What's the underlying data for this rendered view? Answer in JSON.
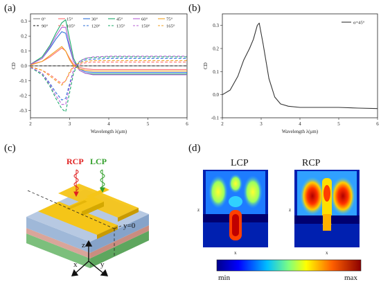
{
  "panel_labels": {
    "a": "(a)",
    "b": "(b)",
    "c": "(c)",
    "d": "(d)"
  },
  "chart_data": [
    {
      "type": "line",
      "xlabel": "Wavelength λ(μm)",
      "ylabel": "CD",
      "xlim": [
        2,
        6
      ],
      "ylim": [
        -0.35,
        0.35
      ],
      "xticks": [
        "2",
        "3",
        "4",
        "5",
        "6"
      ],
      "yticks": [
        "0.3",
        "0.2",
        "0.1",
        "0.0",
        "-0.1",
        "-0.2",
        "-0.3"
      ],
      "legend_position": "top",
      "x": [
        2.0,
        2.3,
        2.5,
        2.65,
        2.8,
        2.9,
        3.0,
        3.1,
        3.25,
        3.4,
        3.6,
        4.0,
        4.5,
        5.0,
        5.5,
        6.0
      ],
      "series": [
        {
          "name": "0°",
          "color": "#808080",
          "dash": false,
          "values": [
            0,
            0,
            0,
            0,
            0,
            0,
            0,
            0,
            0,
            0,
            0,
            0,
            0,
            0,
            0,
            0
          ]
        },
        {
          "name": "15°",
          "color": "#ff6b6b",
          "dash": false,
          "values": [
            0.01,
            0.03,
            0.06,
            0.09,
            0.12,
            0.1,
            0.05,
            0.01,
            -0.01,
            -0.02,
            -0.025,
            -0.025,
            -0.025,
            -0.025,
            -0.025,
            -0.025
          ]
        },
        {
          "name": "30°",
          "color": "#2e6fd9",
          "dash": false,
          "values": [
            0.01,
            0.05,
            0.12,
            0.18,
            0.23,
            0.22,
            0.12,
            0.03,
            -0.02,
            -0.04,
            -0.045,
            -0.045,
            -0.045,
            -0.045,
            -0.045,
            -0.045
          ]
        },
        {
          "name": "45°",
          "color": "#1aaa6a",
          "dash": false,
          "values": [
            0.01,
            0.06,
            0.14,
            0.22,
            0.29,
            0.31,
            0.18,
            0.05,
            -0.03,
            -0.05,
            -0.055,
            -0.055,
            -0.055,
            -0.055,
            -0.055,
            -0.055
          ]
        },
        {
          "name": "60°",
          "color": "#b45fd6",
          "dash": false,
          "values": [
            0.01,
            0.05,
            0.13,
            0.2,
            0.26,
            0.26,
            0.14,
            0.03,
            -0.03,
            -0.05,
            -0.06,
            -0.06,
            -0.06,
            -0.06,
            -0.06,
            -0.06
          ]
        },
        {
          "name": "75°",
          "color": "#f0a020",
          "dash": false,
          "values": [
            0.005,
            0.03,
            0.07,
            0.1,
            0.13,
            0.1,
            0.04,
            0.0,
            -0.02,
            -0.03,
            -0.035,
            -0.035,
            -0.035,
            -0.035,
            -0.035,
            -0.035
          ]
        },
        {
          "name": "90°",
          "color": "#111111",
          "dash": true,
          "values": [
            0,
            0,
            0,
            0,
            0,
            0,
            0,
            0,
            0,
            0,
            0,
            0,
            0,
            0,
            0,
            0
          ]
        },
        {
          "name": "105°",
          "color": "#ff6b6b",
          "dash": true,
          "values": [
            -0.01,
            -0.03,
            -0.06,
            -0.09,
            -0.12,
            -0.1,
            -0.05,
            -0.01,
            0.01,
            0.02,
            0.025,
            0.025,
            0.025,
            0.025,
            0.025,
            0.025
          ]
        },
        {
          "name": "120°",
          "color": "#2e6fd9",
          "dash": true,
          "values": [
            -0.01,
            -0.05,
            -0.12,
            -0.18,
            -0.23,
            -0.22,
            -0.12,
            -0.03,
            0.02,
            0.04,
            0.045,
            0.05,
            0.05,
            0.05,
            0.05,
            0.05
          ]
        },
        {
          "name": "135°",
          "color": "#1aaa6a",
          "dash": true,
          "values": [
            -0.01,
            -0.06,
            -0.14,
            -0.22,
            -0.29,
            -0.31,
            -0.18,
            -0.05,
            0.03,
            0.05,
            0.055,
            0.06,
            0.06,
            0.06,
            0.06,
            0.06
          ]
        },
        {
          "name": "150°",
          "color": "#b45fd6",
          "dash": true,
          "values": [
            -0.01,
            -0.05,
            -0.13,
            -0.2,
            -0.26,
            -0.26,
            -0.14,
            -0.03,
            0.03,
            0.05,
            0.06,
            0.065,
            0.065,
            0.065,
            0.065,
            0.065
          ]
        },
        {
          "name": "165°",
          "color": "#f0a020",
          "dash": true,
          "values": [
            -0.005,
            -0.03,
            -0.07,
            -0.1,
            -0.13,
            -0.1,
            -0.04,
            0.0,
            0.02,
            0.03,
            0.035,
            0.035,
            0.035,
            0.035,
            0.035,
            0.035
          ]
        }
      ]
    },
    {
      "type": "line",
      "xlabel": "Wavelength λ(μm)",
      "ylabel": "CD",
      "xlim": [
        2,
        6
      ],
      "ylim": [
        -0.1,
        0.35
      ],
      "xticks": [
        "2",
        "3",
        "4",
        "5",
        "6"
      ],
      "yticks": [
        "0.3",
        "0.2",
        "0.1",
        "0.0",
        "-0.1"
      ],
      "legend_position": "top-right",
      "x": [
        2.0,
        2.2,
        2.4,
        2.55,
        2.7,
        2.8,
        2.9,
        2.95,
        3.05,
        3.2,
        3.35,
        3.5,
        3.7,
        4.0,
        4.5,
        5.0,
        5.5,
        6.0
      ],
      "series": [
        {
          "name": "α=45°",
          "color": "#333333",
          "values": [
            0.0,
            0.02,
            0.08,
            0.15,
            0.2,
            0.24,
            0.3,
            0.31,
            0.22,
            0.07,
            -0.01,
            -0.04,
            -0.05,
            -0.055,
            -0.055,
            -0.055,
            -0.058,
            -0.06
          ]
        }
      ]
    }
  ],
  "diagram": {
    "rcp_label": "RCP",
    "lcp_label": "LCP",
    "plane_label": "y=0",
    "axis_x": "x",
    "axis_y": "y",
    "axis_z": "z",
    "colors": {
      "rcp": "#e02020",
      "lcp": "#33a02c",
      "gold": "#f5c518",
      "substrate": "#7cbf7c",
      "spacer": "#d9a59a",
      "dielectric": "#9fb8d8"
    }
  },
  "field_maps": {
    "lcp_title": "LCP",
    "rcp_title": "RCP",
    "axis_x": "x",
    "axis_z": "z",
    "colorbar_min": "min",
    "colorbar_max": "max"
  }
}
